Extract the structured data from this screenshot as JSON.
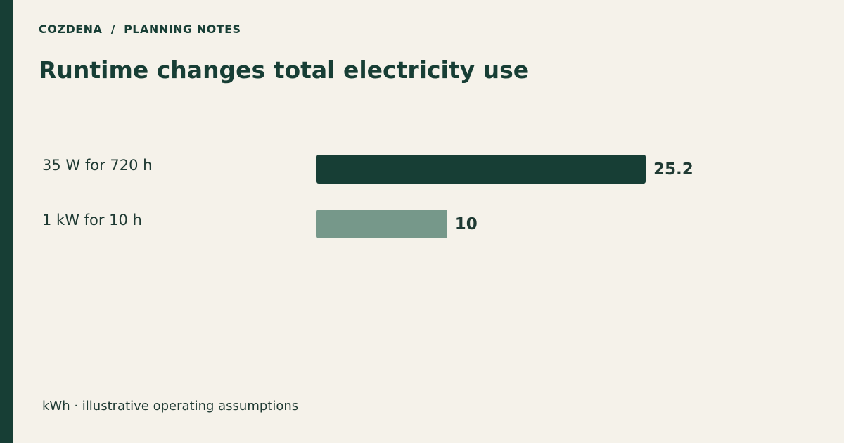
{
  "header": {
    "brand": "COZDENA",
    "separator": "/",
    "section": "PLANNING NOTES",
    "title": "Runtime changes total electricity use"
  },
  "chart_data": {
    "type": "bar",
    "orientation": "horizontal",
    "categories": [
      "35 W for 720 h",
      "1 kW for 10 h"
    ],
    "values": [
      25.2,
      10
    ],
    "value_labels": [
      "25.2",
      "10"
    ],
    "colors": [
      "#173e35",
      "#76988a"
    ],
    "xlim": [
      0,
      25.2
    ],
    "grid": false,
    "legend": "none"
  },
  "footnote": "kWh · illustrative operating assumptions",
  "colors": {
    "accent": "#173e35",
    "background": "#f5f2ea",
    "text": "#1f3a33"
  }
}
